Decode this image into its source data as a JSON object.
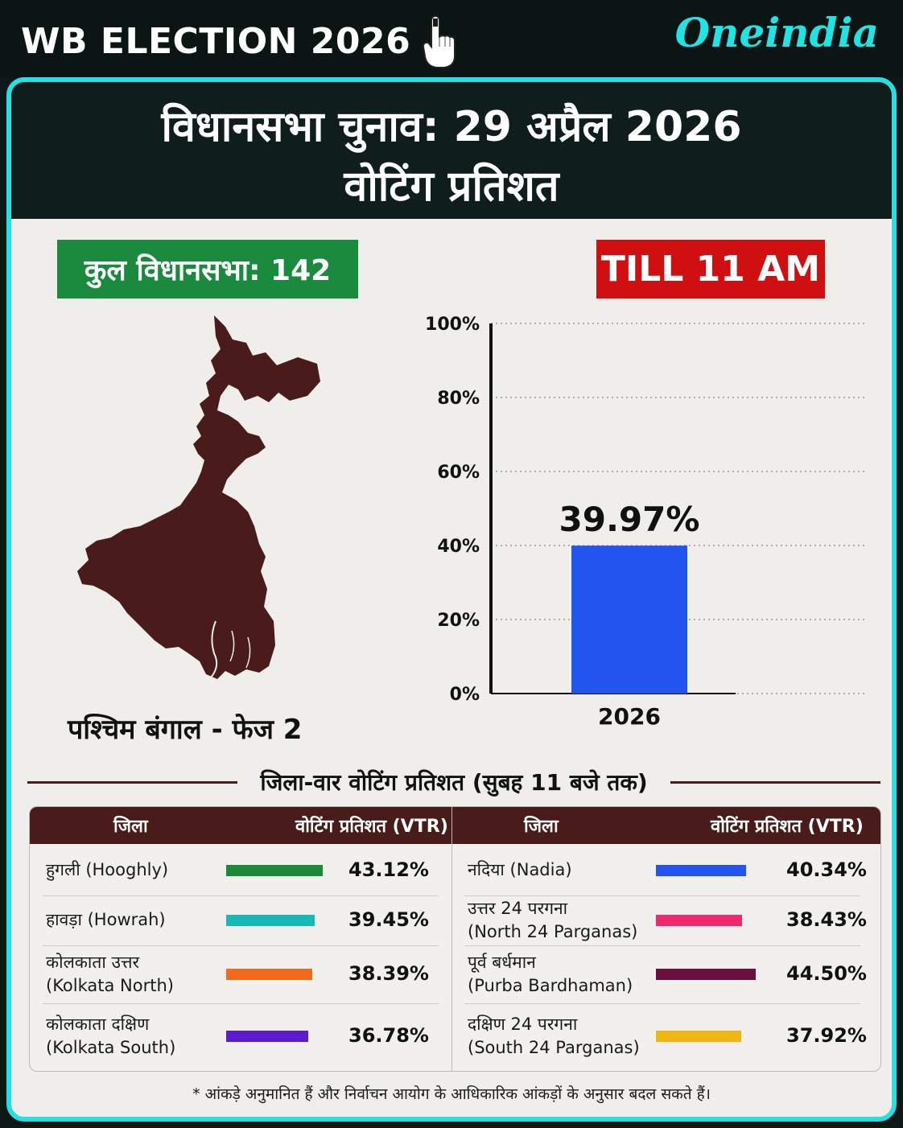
{
  "top_bar": {
    "title": "WB ELECTION 2026",
    "title_icon": "voting-finger-icon",
    "brand": "Oneindia",
    "brand_color": "#22e3e3"
  },
  "header": {
    "line1": "विधानसभा चुनाव: 29 अप्रैल 2026",
    "line2": "वोटिंग प्रतिशत"
  },
  "total_seats_badge": {
    "label": "कुल विधानसभा: 142",
    "color": "#1a8a3f"
  },
  "time_badge": {
    "label": "TILL 11 AM",
    "color": "#d01010"
  },
  "map": {
    "label": "पश्चिम बंगाल - फेज 2",
    "color": "#4a1b1b"
  },
  "chart_data": {
    "type": "bar",
    "categories": [
      "2026"
    ],
    "values": [
      39.97
    ],
    "value_label": "39.97%",
    "ylim": [
      0,
      100
    ],
    "yticks": [
      0,
      20,
      40,
      60,
      80,
      100
    ],
    "ytick_labels": [
      "0%",
      "20%",
      "40%",
      "60%",
      "80%",
      "100%"
    ],
    "grid": true,
    "bar_color": "#2255ee"
  },
  "district_section": {
    "title": "जिला-वार वोटिंग प्रतिशत (सुबह 11 बजे तक)",
    "col_district": "जिला",
    "col_vtr": "वोटिंग प्रतिशत (VTR)",
    "header_color": "#4a1b1b"
  },
  "districts_left": [
    {
      "name": "हुगली (Hooghly)",
      "name2": "",
      "pct": "43.12%",
      "value": 43.12,
      "color": "#1a8a3a"
    },
    {
      "name": "हावड़ा (Howrah)",
      "name2": "",
      "pct": "39.45%",
      "value": 39.45,
      "color": "#17b8b8"
    },
    {
      "name": "कोलकाता उत्तर",
      "name2": "(Kolkata North)",
      "pct": "38.39%",
      "value": 38.39,
      "color": "#f26a1b"
    },
    {
      "name": "कोलकाता दक्षिण",
      "name2": "(Kolkata South)",
      "pct": "36.78%",
      "value": 36.78,
      "color": "#5a1ad0"
    }
  ],
  "districts_right": [
    {
      "name": "नदिया (Nadia)",
      "name2": "",
      "pct": "40.34%",
      "value": 40.34,
      "color": "#2255ee"
    },
    {
      "name": "उत्तर 24 परगना",
      "name2": "(North 24 Parganas)",
      "pct": "38.43%",
      "value": 38.43,
      "color": "#f0286e"
    },
    {
      "name": "पूर्व बर्धमान",
      "name2": "(Purba Bardhaman)",
      "pct": "44.50%",
      "value": 44.5,
      "color": "#6b0f3e"
    },
    {
      "name": "दक्षिण 24 परगना",
      "name2": "(South 24 Parganas)",
      "pct": "37.92%",
      "value": 37.92,
      "color": "#f2b610"
    }
  ],
  "footnote": "* आंकड़े अनुमानित हैं और निर्वाचन आयोग के आधिकारिक आंकड़ों के अनुसार बदल सकते हैं।"
}
